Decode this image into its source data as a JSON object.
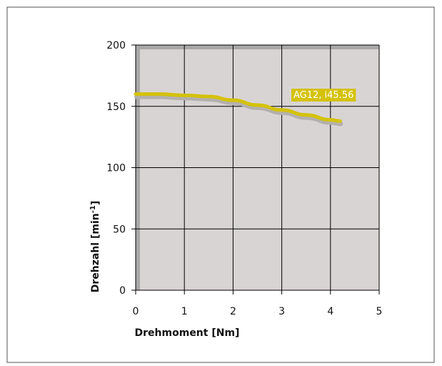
{
  "chart_data": {
    "type": "line",
    "title": "",
    "xlabel": "Drehmoment [Nm]",
    "ylabel": "Drehzahl [min",
    "ylabel_sup": "-1",
    "ylabel_close": "]",
    "xlim": [
      0,
      5
    ],
    "ylim": [
      0,
      200
    ],
    "xticks": [
      "0",
      "1",
      "2",
      "3",
      "4",
      "5"
    ],
    "yticks": [
      "0",
      "50",
      "100",
      "150",
      "200"
    ],
    "grid": true,
    "series": [
      {
        "name": "AG12, i45.56",
        "color": "#d4c20a",
        "x": [
          0,
          0.5,
          1.0,
          1.5,
          2.0,
          2.5,
          3.0,
          3.5,
          4.0,
          4.2
        ],
        "y": [
          160,
          160,
          159,
          158,
          155,
          151,
          147,
          143,
          139,
          138
        ]
      }
    ],
    "annotation": {
      "text": "AG12, i45.56",
      "color": "#d4c20a",
      "series": 0
    },
    "colors": {
      "plot_bg": "#d9d4d4",
      "plot_shadow": "#a9a7a7",
      "line_shadow": "#b3b0ae",
      "grid": "#000000"
    }
  }
}
